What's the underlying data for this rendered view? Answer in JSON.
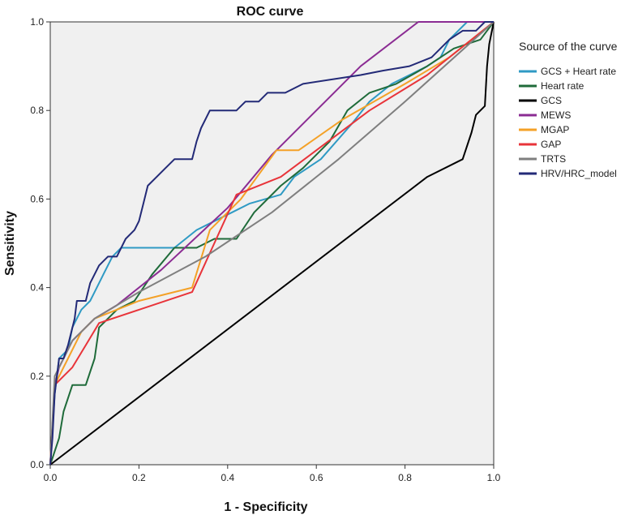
{
  "chart_data": {
    "type": "line",
    "title": "ROC curve",
    "xlabel": "1 - Specificity",
    "ylabel": "Sensitivity",
    "xlim": [
      0,
      1
    ],
    "ylim": [
      0,
      1
    ],
    "x_ticks": [
      "0.0",
      "0.2",
      "0.4",
      "0.6",
      "0.8",
      "1.0"
    ],
    "y_ticks": [
      "0.0",
      "0.2",
      "0.4",
      "0.6",
      "0.8",
      "1.0"
    ],
    "legend_title": "Source of the curve",
    "legend_position": "right",
    "series": [
      {
        "name": "GCS + Heart rate",
        "color": "#2f9ac4",
        "points": [
          [
            0,
            0
          ],
          [
            0.01,
            0.16
          ],
          [
            0.02,
            0.24
          ],
          [
            0.04,
            0.26
          ],
          [
            0.05,
            0.31
          ],
          [
            0.07,
            0.35
          ],
          [
            0.09,
            0.37
          ],
          [
            0.1,
            0.39
          ],
          [
            0.12,
            0.43
          ],
          [
            0.14,
            0.47
          ],
          [
            0.16,
            0.49
          ],
          [
            0.19,
            0.49
          ],
          [
            0.28,
            0.49
          ],
          [
            0.33,
            0.53
          ],
          [
            0.37,
            0.55
          ],
          [
            0.41,
            0.57
          ],
          [
            0.45,
            0.59
          ],
          [
            0.52,
            0.61
          ],
          [
            0.55,
            0.65
          ],
          [
            0.61,
            0.69
          ],
          [
            0.68,
            0.77
          ],
          [
            0.72,
            0.82
          ],
          [
            0.77,
            0.86
          ],
          [
            0.85,
            0.9
          ],
          [
            0.88,
            0.92
          ],
          [
            0.9,
            0.96
          ],
          [
            0.94,
            1.0
          ],
          [
            1,
            1
          ]
        ]
      },
      {
        "name": "Heart rate",
        "color": "#1f6b3a",
        "points": [
          [
            0,
            0
          ],
          [
            0.02,
            0.06
          ],
          [
            0.03,
            0.12
          ],
          [
            0.05,
            0.18
          ],
          [
            0.08,
            0.18
          ],
          [
            0.1,
            0.24
          ],
          [
            0.11,
            0.31
          ],
          [
            0.15,
            0.35
          ],
          [
            0.19,
            0.37
          ],
          [
            0.23,
            0.43
          ],
          [
            0.28,
            0.49
          ],
          [
            0.33,
            0.49
          ],
          [
            0.37,
            0.51
          ],
          [
            0.42,
            0.51
          ],
          [
            0.46,
            0.57
          ],
          [
            0.52,
            0.63
          ],
          [
            0.57,
            0.67
          ],
          [
            0.63,
            0.73
          ],
          [
            0.67,
            0.8
          ],
          [
            0.72,
            0.84
          ],
          [
            0.78,
            0.86
          ],
          [
            0.85,
            0.9
          ],
          [
            0.91,
            0.94
          ],
          [
            0.97,
            0.96
          ],
          [
            1,
            1
          ]
        ]
      },
      {
        "name": "GCS",
        "color": "#000000",
        "points": [
          [
            0,
            0
          ],
          [
            0.85,
            0.65
          ],
          [
            0.93,
            0.69
          ],
          [
            0.95,
            0.75
          ],
          [
            0.96,
            0.79
          ],
          [
            0.98,
            0.81
          ],
          [
            0.985,
            0.9
          ],
          [
            0.99,
            0.95
          ],
          [
            1,
            1
          ]
        ]
      },
      {
        "name": "MEWS",
        "color": "#8b2c93",
        "points": [
          [
            0,
            0
          ],
          [
            0.01,
            0.18
          ],
          [
            0.02,
            0.22
          ],
          [
            0.05,
            0.28
          ],
          [
            0.1,
            0.33
          ],
          [
            0.15,
            0.36
          ],
          [
            0.25,
            0.44
          ],
          [
            0.4,
            0.58
          ],
          [
            0.5,
            0.7
          ],
          [
            0.6,
            0.8
          ],
          [
            0.7,
            0.9
          ],
          [
            0.83,
            1.0
          ],
          [
            1,
            1
          ]
        ]
      },
      {
        "name": "MGAP",
        "color": "#f4a127",
        "points": [
          [
            0,
            0
          ],
          [
            0.01,
            0.18
          ],
          [
            0.04,
            0.24
          ],
          [
            0.07,
            0.3
          ],
          [
            0.1,
            0.33
          ],
          [
            0.2,
            0.37
          ],
          [
            0.32,
            0.4
          ],
          [
            0.36,
            0.53
          ],
          [
            0.43,
            0.6
          ],
          [
            0.51,
            0.71
          ],
          [
            0.56,
            0.71
          ],
          [
            0.66,
            0.78
          ],
          [
            0.8,
            0.86
          ],
          [
            0.9,
            0.92
          ],
          [
            1,
            1
          ]
        ]
      },
      {
        "name": "GAP",
        "color": "#e8343a",
        "points": [
          [
            0,
            0
          ],
          [
            0.01,
            0.18
          ],
          [
            0.03,
            0.2
          ],
          [
            0.05,
            0.22
          ],
          [
            0.08,
            0.27
          ],
          [
            0.11,
            0.32
          ],
          [
            0.2,
            0.35
          ],
          [
            0.32,
            0.39
          ],
          [
            0.42,
            0.61
          ],
          [
            0.52,
            0.65
          ],
          [
            0.6,
            0.71
          ],
          [
            0.72,
            0.8
          ],
          [
            0.85,
            0.88
          ],
          [
            1,
            1
          ]
        ]
      },
      {
        "name": "TRTS",
        "color": "#7f7f7f",
        "points": [
          [
            0,
            0
          ],
          [
            0.01,
            0.2
          ],
          [
            0.05,
            0.28
          ],
          [
            0.1,
            0.33
          ],
          [
            0.2,
            0.39
          ],
          [
            0.35,
            0.47
          ],
          [
            0.5,
            0.57
          ],
          [
            0.65,
            0.69
          ],
          [
            0.8,
            0.82
          ],
          [
            1,
            1
          ]
        ]
      },
      {
        "name": "HRV/HRC_model",
        "color": "#232a77",
        "points": [
          [
            0,
            0
          ],
          [
            0.005,
            0.06
          ],
          [
            0.01,
            0.16
          ],
          [
            0.015,
            0.2
          ],
          [
            0.02,
            0.24
          ],
          [
            0.03,
            0.24
          ],
          [
            0.04,
            0.27
          ],
          [
            0.055,
            0.33
          ],
          [
            0.06,
            0.37
          ],
          [
            0.08,
            0.37
          ],
          [
            0.09,
            0.41
          ],
          [
            0.11,
            0.45
          ],
          [
            0.13,
            0.47
          ],
          [
            0.15,
            0.47
          ],
          [
            0.17,
            0.51
          ],
          [
            0.19,
            0.53
          ],
          [
            0.2,
            0.55
          ],
          [
            0.21,
            0.59
          ],
          [
            0.22,
            0.63
          ],
          [
            0.24,
            0.65
          ],
          [
            0.26,
            0.67
          ],
          [
            0.28,
            0.69
          ],
          [
            0.32,
            0.69
          ],
          [
            0.33,
            0.73
          ],
          [
            0.34,
            0.76
          ],
          [
            0.36,
            0.8
          ],
          [
            0.42,
            0.8
          ],
          [
            0.44,
            0.82
          ],
          [
            0.47,
            0.82
          ],
          [
            0.49,
            0.84
          ],
          [
            0.53,
            0.84
          ],
          [
            0.57,
            0.86
          ],
          [
            0.7,
            0.88
          ],
          [
            0.75,
            0.89
          ],
          [
            0.81,
            0.9
          ],
          [
            0.86,
            0.92
          ],
          [
            0.9,
            0.96
          ],
          [
            0.93,
            0.98
          ],
          [
            0.96,
            0.98
          ],
          [
            0.98,
            1.0
          ],
          [
            1,
            1
          ]
        ]
      }
    ]
  }
}
